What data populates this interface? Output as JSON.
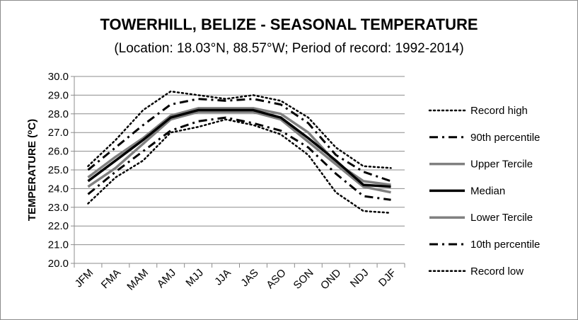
{
  "chart_data": {
    "type": "line",
    "title": "TOWERHILL, BELIZE - SEASONAL TEMPERATURE",
    "subtitle": "(Location: 18.03°N, 88.57°W; Period of record: 1992-2014)",
    "ylabel": "TEMPERATURE (°C)",
    "ylabel_prefix": "TEMPERATURE (",
    "ylabel_sup": "o",
    "ylabel_suffix": "C)",
    "xlabel": "",
    "ylim": [
      20.0,
      30.0
    ],
    "y_ticks": [
      "20.0",
      "21.0",
      "22.0",
      "23.0",
      "24.0",
      "25.0",
      "26.0",
      "27.0",
      "28.0",
      "29.0",
      "30.0"
    ],
    "grid": true,
    "legend_position": "right",
    "categories": [
      "JFM",
      "FMA",
      "MAM",
      "AMJ",
      "MJJ",
      "JJA",
      "JAS",
      "ASO",
      "SON",
      "OND",
      "NDJ",
      "DJF"
    ],
    "series": [
      {
        "name": "Record high",
        "style": "dotted",
        "color": "#000000",
        "values": [
          25.2,
          26.6,
          28.2,
          29.2,
          29.0,
          28.8,
          29.0,
          28.7,
          27.8,
          26.2,
          25.2,
          25.1
        ]
      },
      {
        "name": "90th percentile",
        "style": "dashdot",
        "color": "#000000",
        "values": [
          25.0,
          26.2,
          27.4,
          28.5,
          28.8,
          28.7,
          28.8,
          28.5,
          27.5,
          25.8,
          24.9,
          24.4
        ]
      },
      {
        "name": "Upper Tercile",
        "style": "solid-gray",
        "color": "#808080",
        "values": [
          24.6,
          25.7,
          26.7,
          27.9,
          28.3,
          28.3,
          28.3,
          28.0,
          27.0,
          25.4,
          24.4,
          24.2
        ]
      },
      {
        "name": "Median",
        "style": "solid-black",
        "color": "#000000",
        "values": [
          24.4,
          25.5,
          26.6,
          27.8,
          28.2,
          28.2,
          28.2,
          27.8,
          26.7,
          25.5,
          24.2,
          24.1
        ]
      },
      {
        "name": "Lower Tercile",
        "style": "solid-gray",
        "color": "#808080",
        "values": [
          24.1,
          25.1,
          26.4,
          27.7,
          28.1,
          28.1,
          28.1,
          27.7,
          26.5,
          25.3,
          24.1,
          23.8
        ]
      },
      {
        "name": "10th percentile",
        "style": "dashdot",
        "color": "#000000",
        "values": [
          23.7,
          24.9,
          26.0,
          27.1,
          27.6,
          27.8,
          27.5,
          27.1,
          26.2,
          24.8,
          23.6,
          23.4
        ]
      },
      {
        "name": "Record low",
        "style": "dotted",
        "color": "#000000",
        "values": [
          23.2,
          24.6,
          25.5,
          27.0,
          27.3,
          27.7,
          27.4,
          26.9,
          25.8,
          23.8,
          22.8,
          22.7
        ]
      }
    ]
  }
}
